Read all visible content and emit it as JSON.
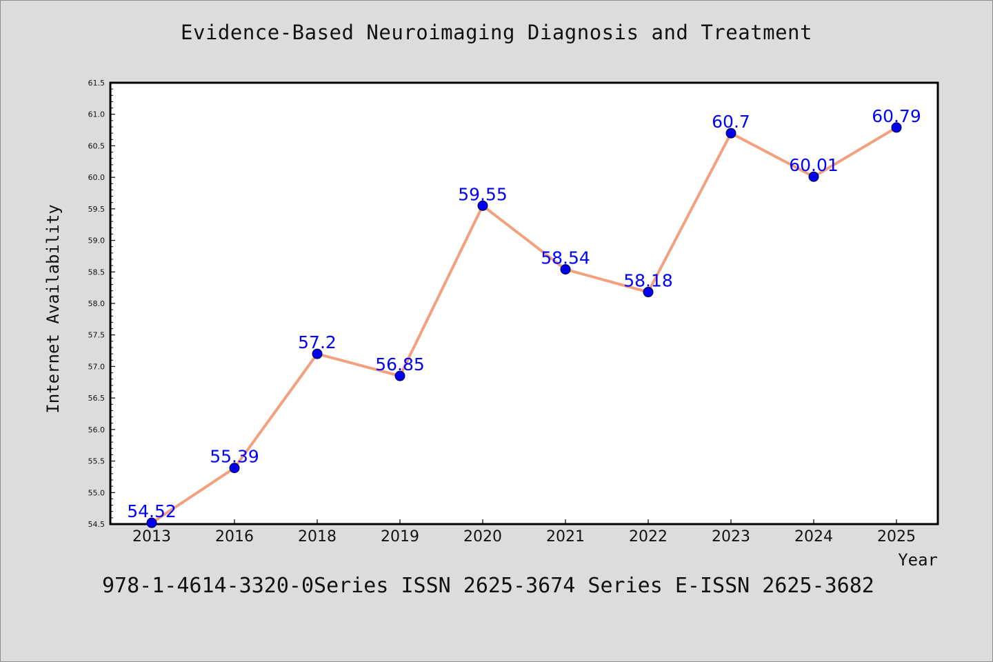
{
  "title": "Evidence-Based Neuroimaging Diagnosis and Treatment",
  "footer": "978-1-4614-3320-0Series ISSN 2625-3674 Series E-ISSN 2625-3682",
  "colors": {
    "background": "#dcdcdc",
    "plot_background": "#ffffff",
    "line": "#f4a07e",
    "marker": "#0000ee",
    "data_label": "#0000ff"
  },
  "chart_data": {
    "type": "line",
    "title": "Evidence-Based Neuroimaging Diagnosis and Treatment",
    "xlabel": "Year",
    "ylabel": "Internet Availability",
    "categories": [
      "2013",
      "2016",
      "2018",
      "2019",
      "2020",
      "2021",
      "2022",
      "2023",
      "2024",
      "2025"
    ],
    "series": [
      {
        "values": [
          54.52,
          55.39,
          57.2,
          56.85,
          59.55,
          58.54,
          58.18,
          60.7,
          60.01,
          60.79
        ],
        "labels": [
          "54.52",
          "55.39",
          "57.2",
          "56.85",
          "59.55",
          "58.54",
          "58.18",
          "60.7",
          "60.01",
          "60.79"
        ]
      }
    ],
    "ylim": [
      54.5,
      61.5
    ],
    "yticks": [
      "54.5",
      "55.0",
      "55.5",
      "56.0",
      "56.5",
      "57.0",
      "57.5",
      "58.0",
      "58.5",
      "59.0",
      "59.5",
      "60.0",
      "60.5",
      "61.0",
      "61.5"
    ],
    "grid": false,
    "legend": "none"
  }
}
